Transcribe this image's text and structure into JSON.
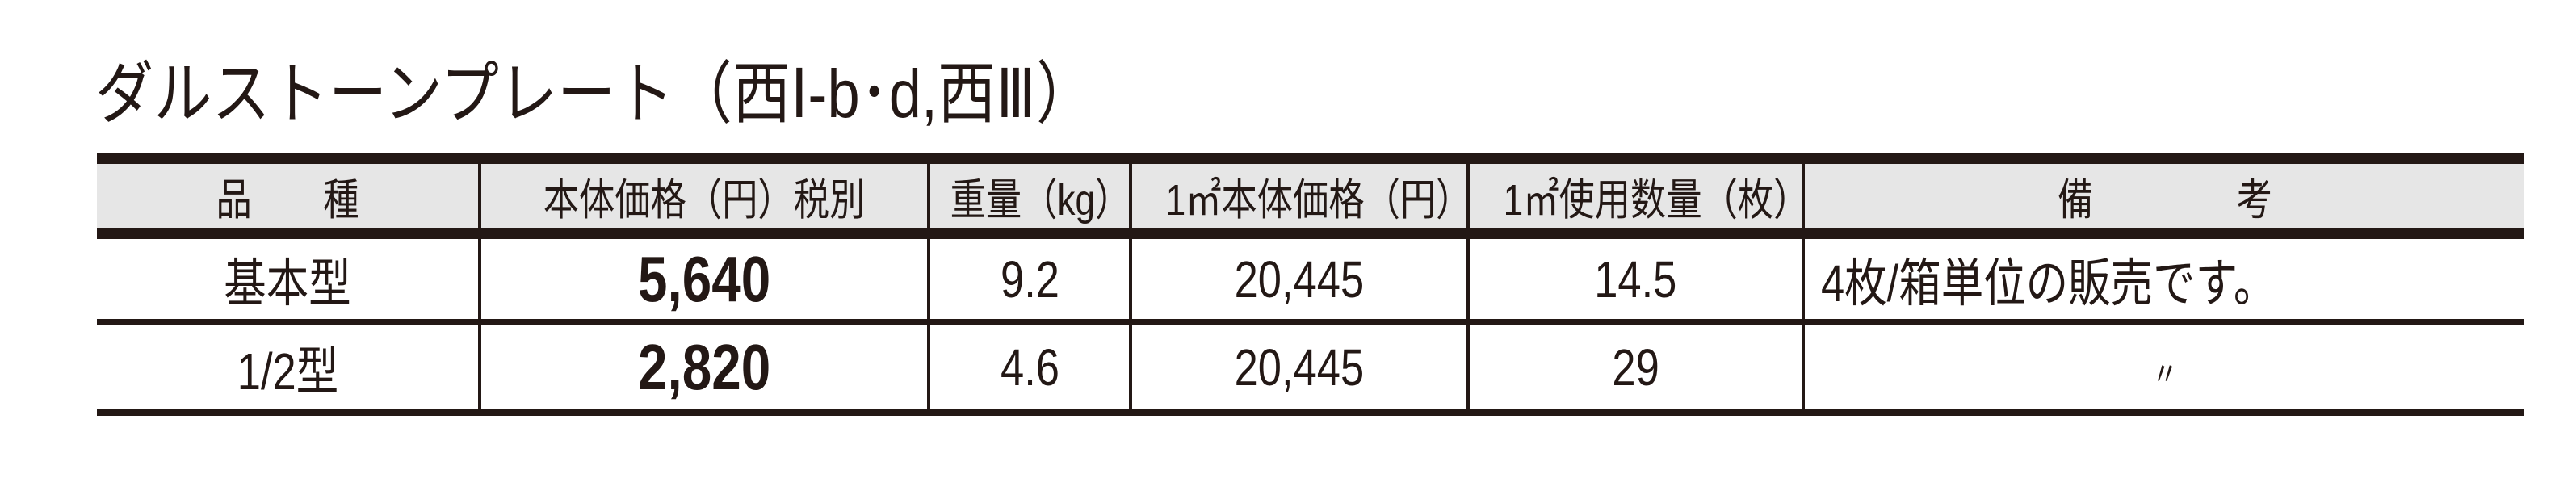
{
  "title": "ダルストーンプレート（西Ⅰ-b･d,西Ⅲ）",
  "table": {
    "headers": [
      "品　　種",
      "本体価格（円）税別",
      "重量（kg）",
      "1㎡本体価格（円）",
      "1㎡使用数量（枚）",
      "備　　　　考"
    ],
    "rows": [
      [
        "基本型",
        "5,640",
        "9.2",
        "20,445",
        "14.5",
        "4枚/箱単位の販売です。"
      ],
      [
        "1/2型",
        "2,820",
        "4.6",
        "20,445",
        "29",
        "〃"
      ]
    ]
  }
}
